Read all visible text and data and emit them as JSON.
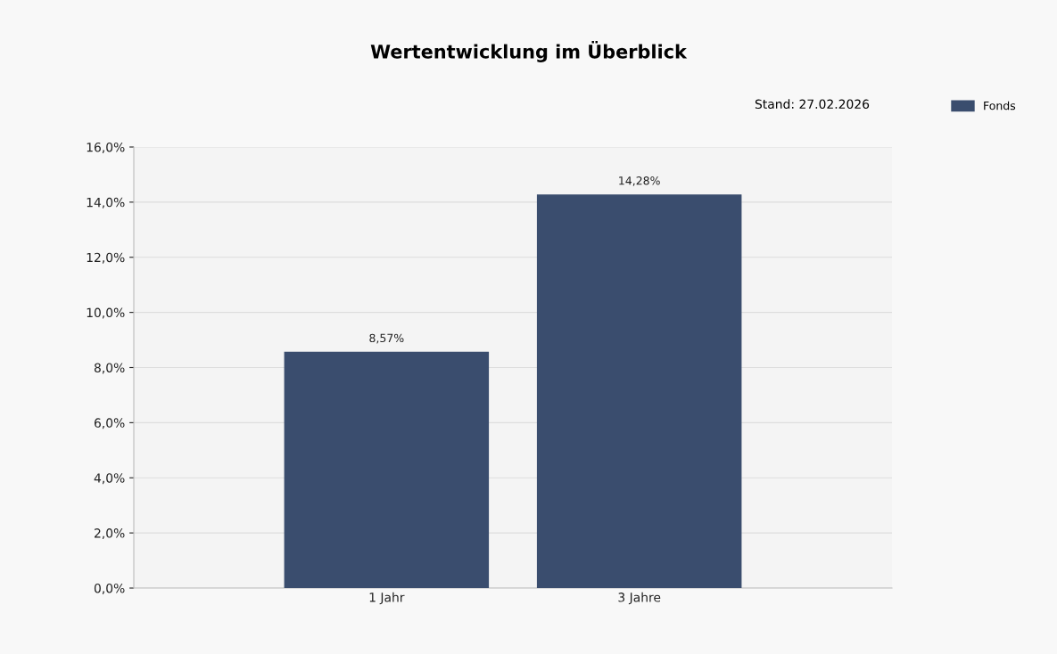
{
  "chart_data": {
    "type": "bar",
    "title": "Wertentwicklung im Überblick",
    "annotations": [
      "Stand: 27.02.2026"
    ],
    "categories": [
      "1 Jahr",
      "3 Jahre"
    ],
    "series": [
      {
        "name": "Fonds",
        "color": "#3a4d6e",
        "values": [
          8.57,
          14.28
        ],
        "value_labels": [
          "8,57%",
          "14,28%"
        ]
      }
    ],
    "ylim": [
      0,
      16
    ],
    "yticks": [
      {
        "value": 0,
        "label": "0,0%"
      },
      {
        "value": 2,
        "label": "2,0%"
      },
      {
        "value": 4,
        "label": "4,0%"
      },
      {
        "value": 6,
        "label": "6,0%"
      },
      {
        "value": 8,
        "label": "8,0%"
      },
      {
        "value": 10,
        "label": "10,0%"
      },
      {
        "value": 12,
        "label": "12,0%"
      },
      {
        "value": 14,
        "label": "14,0%"
      },
      {
        "value": 16,
        "label": "16,0%"
      }
    ],
    "grid": "y",
    "legend": "top right"
  }
}
